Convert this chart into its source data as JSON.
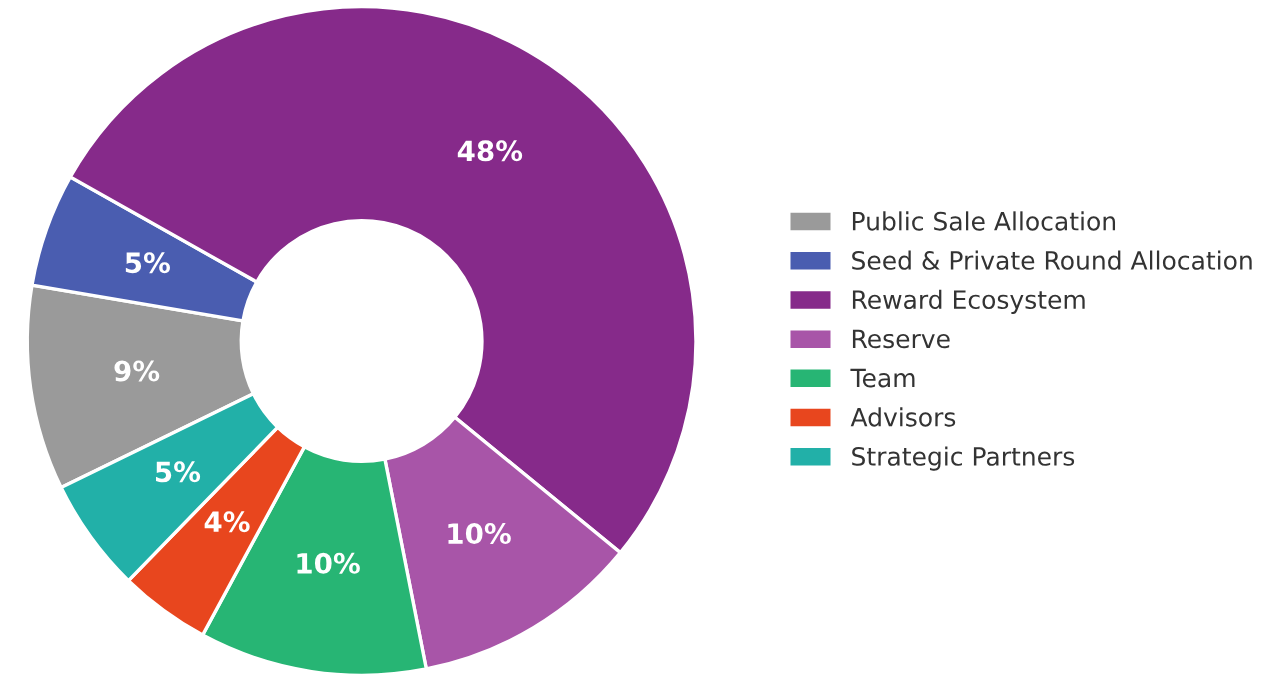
{
  "chart_data": {
    "type": "donut",
    "categories": [
      "Public Sale Allocation",
      "Seed & Private Round Allocation",
      "Reward Ecosystem",
      "Reserve",
      "Team",
      "Advisors",
      "Strategic Partners"
    ],
    "values": [
      9,
      5,
      48,
      10,
      10,
      4,
      5
    ],
    "colors": [
      "#9a9a9a",
      "#4a5db0",
      "#862a8a",
      "#a855a8",
      "#27b574",
      "#e8461e",
      "#22b0a8"
    ],
    "value_labels": [
      "9%",
      "5%",
      "48%",
      "10%",
      "10%",
      "4%",
      "5%"
    ],
    "legend": "right"
  }
}
